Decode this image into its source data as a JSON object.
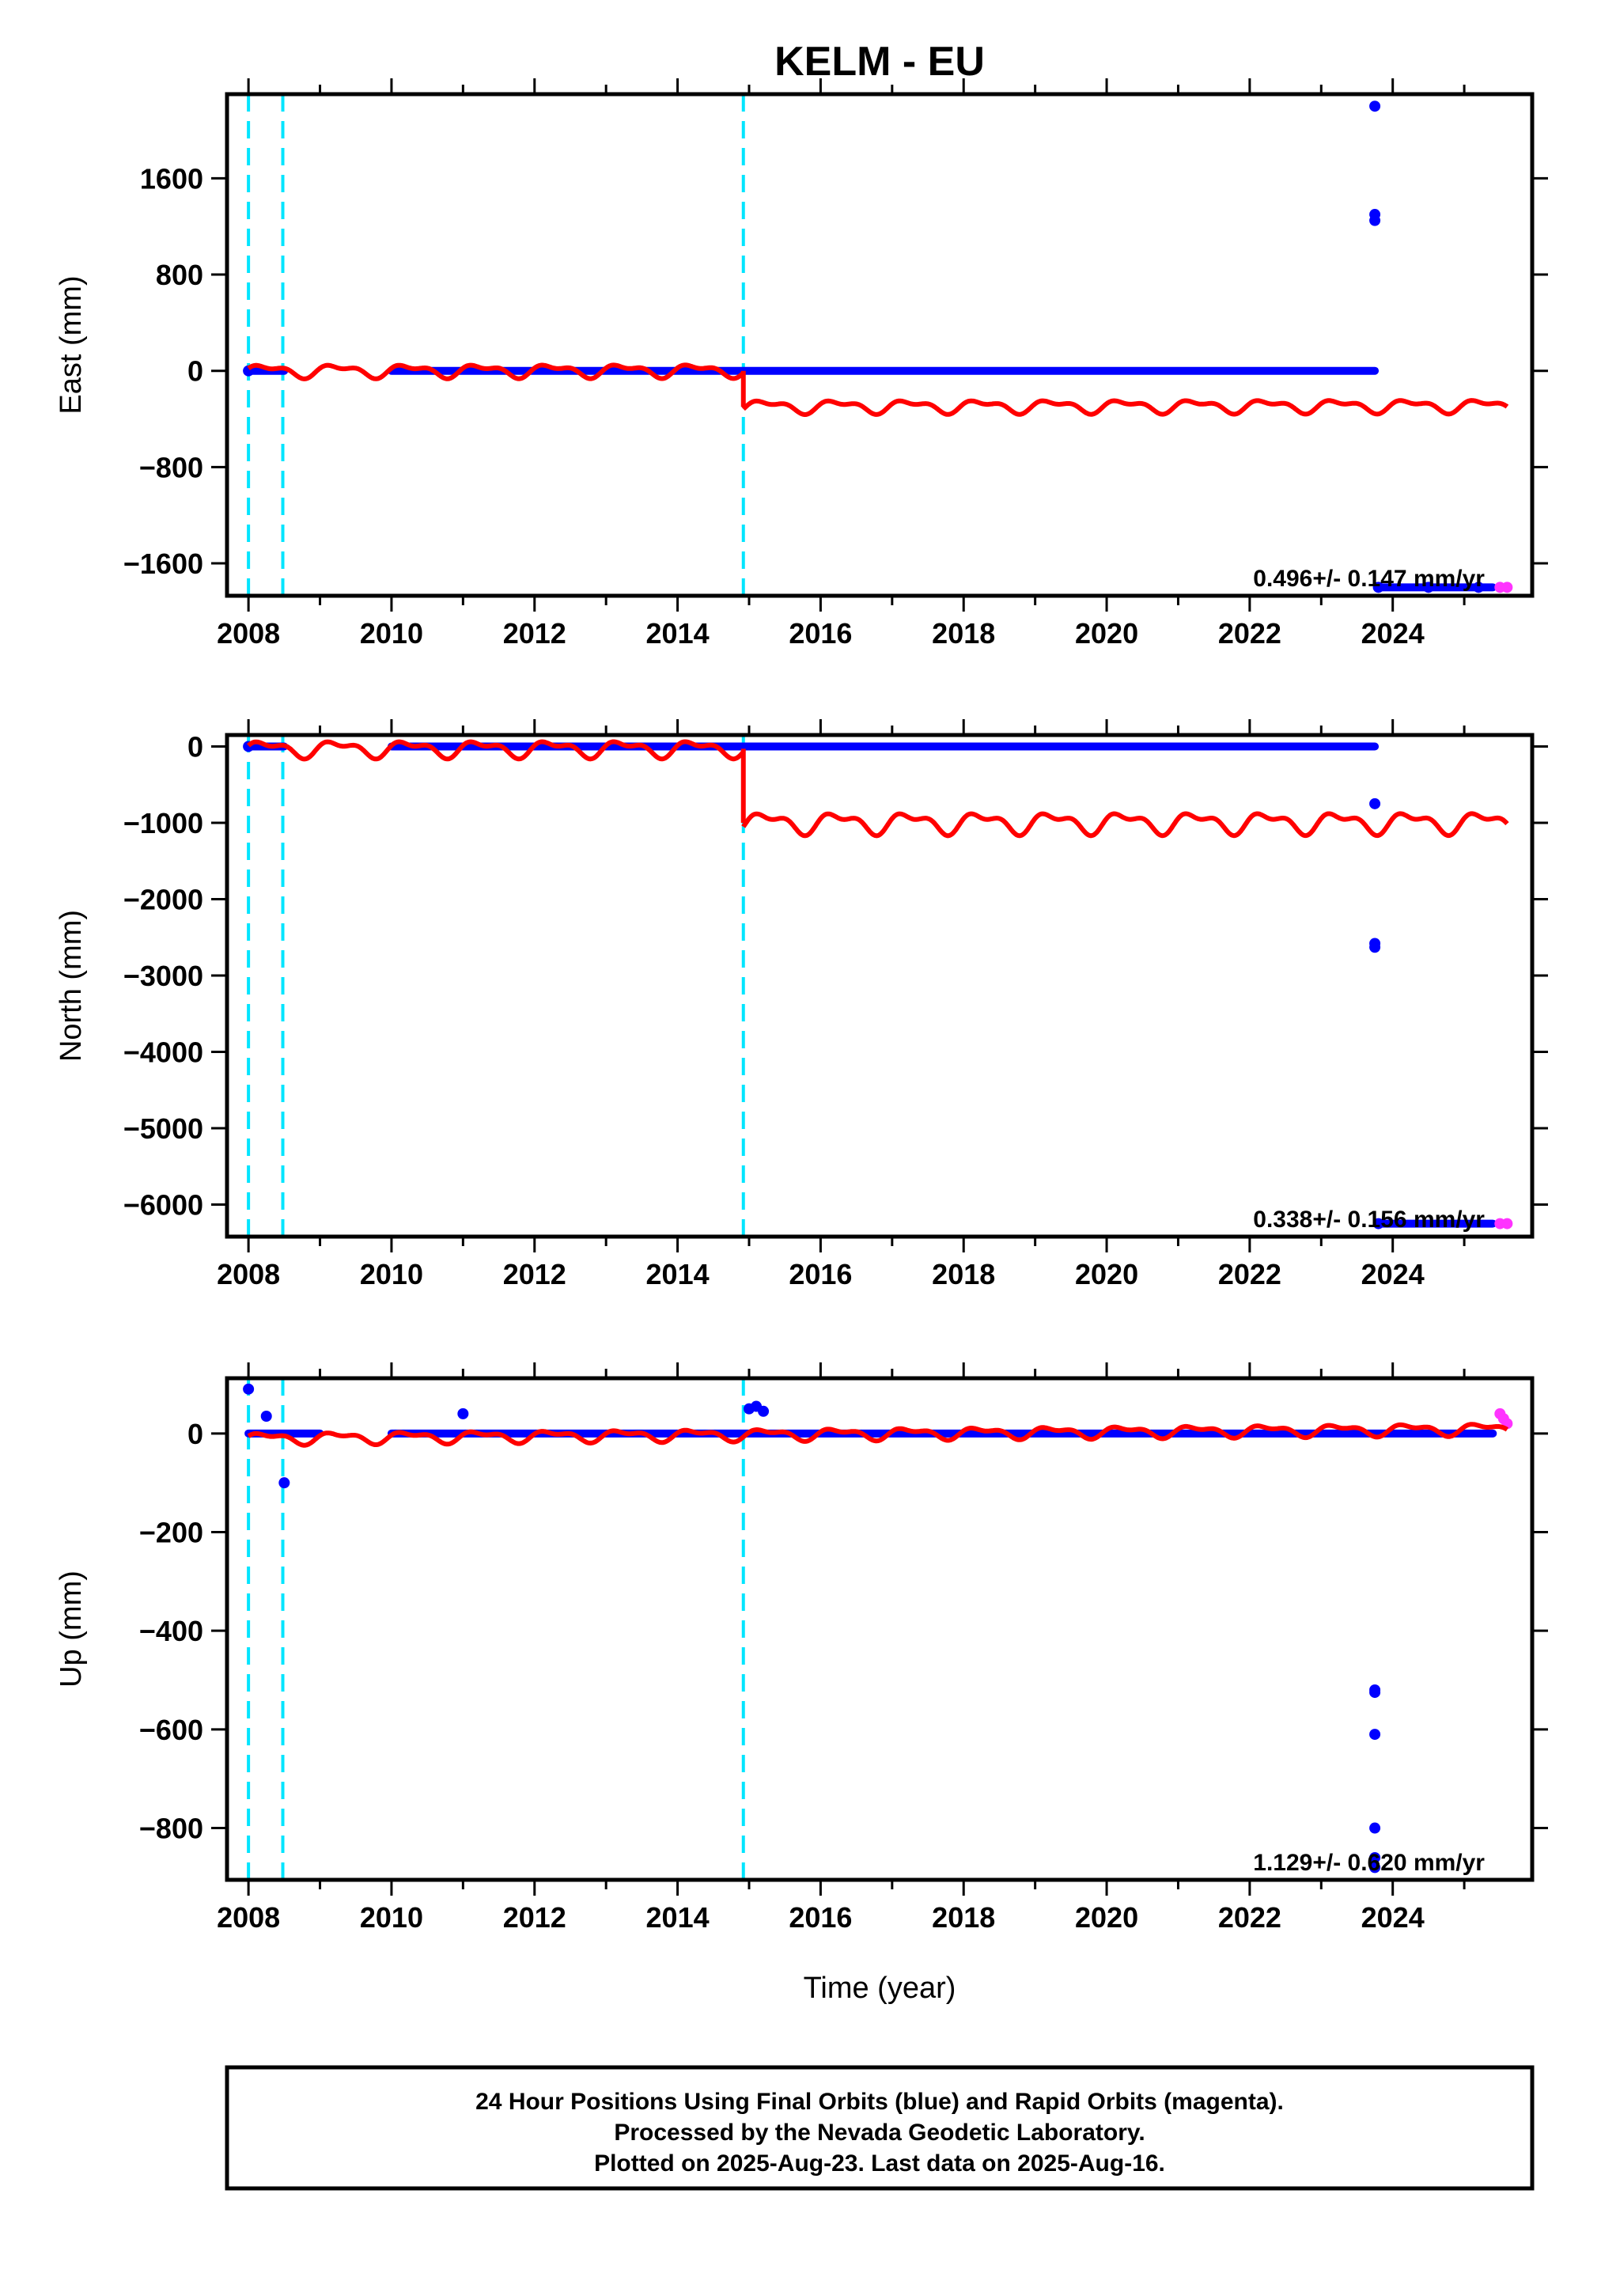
{
  "title": "KELM - EU",
  "xlabel": "Time (year)",
  "footer": [
    "24 Hour Positions Using Final Orbits (blue) and Rapid Orbits (magenta).",
    "Processed by the Nevada Geodetic Laboratory.",
    "Plotted on 2025-Aug-23. Last data on 2025-Aug-16."
  ],
  "colors": {
    "final": "#0000ff",
    "rapid": "#ff33ff",
    "model": "#ff0000",
    "offset": "#00e5ff"
  },
  "chart_data": [
    {
      "type": "scatter",
      "name": "east",
      "ylabel": "East (mm)",
      "rate_text": "0.496+/- 0.147 mm/yr",
      "xlim": [
        2007.7,
        2025.95
      ],
      "ylim": [
        -1870,
        2300
      ],
      "xticks": [
        2008,
        2010,
        2012,
        2014,
        2016,
        2018,
        2020,
        2022,
        2024
      ],
      "yticks": [
        1600,
        800,
        0,
        -800,
        -1600
      ],
      "yticklabels": [
        "1600",
        "800",
        "0",
        "−800",
        "−1600"
      ],
      "offsets": [
        2008.0,
        2008.48,
        2014.92
      ],
      "final_points": [
        [
          2008.0,
          0
        ],
        [
          2023.75,
          2200
        ],
        [
          2023.75,
          1300
        ],
        [
          2023.75,
          1250
        ],
        [
          2023.8,
          -1800
        ],
        [
          2024.5,
          -1800
        ],
        [
          2025.2,
          -1800
        ]
      ],
      "final_segments": [
        {
          "x": [
            2008.0,
            2008.5
          ],
          "y": 0
        },
        {
          "x": [
            2010.0,
            2023.75
          ],
          "y": 0
        },
        {
          "x": [
            2023.8,
            2025.4
          ],
          "y": -1800
        }
      ],
      "rapid_points": [
        [
          2025.5,
          -1800
        ],
        [
          2025.6,
          -1800
        ]
      ],
      "model": {
        "segments": [
          {
            "x": [
              2008.0,
              2014.92
            ],
            "offset": 0,
            "slope": 0.5,
            "amp": 55,
            "bump": 60
          },
          {
            "x": [
              2014.92,
              2025.6
            ],
            "offset": -300,
            "slope": 0.5,
            "amp": 55,
            "bump": 0
          }
        ]
      }
    },
    {
      "type": "scatter",
      "name": "north",
      "ylabel": "North (mm)",
      "rate_text": "0.338+/- 0.156 mm/yr",
      "xlim": [
        2007.7,
        2025.95
      ],
      "ylim": [
        -6420,
        150
      ],
      "xticks": [
        2008,
        2010,
        2012,
        2014,
        2016,
        2018,
        2020,
        2022,
        2024
      ],
      "yticks": [
        0,
        -1000,
        -2000,
        -3000,
        -4000,
        -5000,
        -6000
      ],
      "yticklabels": [
        "0",
        "−1000",
        "−2000",
        "−3000",
        "−4000",
        "−5000",
        "−6000"
      ],
      "offsets": [
        2008.0,
        2008.48,
        2014.92
      ],
      "final_points": [
        [
          2008.0,
          0
        ],
        [
          2023.75,
          -750
        ],
        [
          2023.75,
          -2580
        ],
        [
          2023.75,
          -2630
        ],
        [
          2023.8,
          -6250
        ]
      ],
      "final_segments": [
        {
          "x": [
            2008.0,
            2008.5
          ],
          "y": 0
        },
        {
          "x": [
            2010.0,
            2023.75
          ],
          "y": 0
        },
        {
          "x": [
            2023.8,
            2025.4
          ],
          "y": -6250
        }
      ],
      "rapid_points": [
        [
          2025.5,
          -6250
        ],
        [
          2025.6,
          -6250
        ]
      ],
      "model": {
        "segments": [
          {
            "x": [
              2008.0,
              2014.92
            ],
            "offset": -30,
            "slope": 0.3,
            "amp": 110,
            "bump": 0
          },
          {
            "x": [
              2014.92,
              2025.6
            ],
            "offset": -1000,
            "slope": 0.3,
            "amp": 140,
            "bump": 0
          }
        ]
      }
    },
    {
      "type": "scatter",
      "name": "up",
      "ylabel": "Up (mm)",
      "rate_text": "1.129+/- 0.620 mm/yr",
      "xlim": [
        2007.7,
        2025.95
      ],
      "ylim": [
        -905,
        112
      ],
      "xticks": [
        2008,
        2010,
        2012,
        2014,
        2016,
        2018,
        2020,
        2022,
        2024
      ],
      "yticks": [
        0,
        -200,
        -400,
        -600,
        -800
      ],
      "yticklabels": [
        "0",
        "−200",
        "−400",
        "−600",
        "−800"
      ],
      "offsets": [
        2008.0,
        2008.48,
        2014.92
      ],
      "final_points": [
        [
          2008.0,
          90
        ],
        [
          2008.25,
          35
        ],
        [
          2008.5,
          -100
        ],
        [
          2011.0,
          40
        ],
        [
          2015.0,
          50
        ],
        [
          2015.1,
          55
        ],
        [
          2015.2,
          45
        ],
        [
          2023.75,
          -520
        ],
        [
          2023.75,
          -525
        ],
        [
          2023.75,
          -610
        ],
        [
          2023.75,
          -800
        ],
        [
          2023.75,
          -860
        ],
        [
          2023.75,
          -880
        ]
      ],
      "final_segments": [
        {
          "x": [
            2008.0,
            2009.0
          ],
          "y": 0
        },
        {
          "x": [
            2010.0,
            2025.4
          ],
          "y": 0
        }
      ],
      "rapid_points": [
        [
          2025.5,
          40
        ],
        [
          2025.55,
          30
        ],
        [
          2025.6,
          20
        ]
      ],
      "model": {
        "segments": [
          {
            "x": [
              2008.0,
              2014.92
            ],
            "offset": -10,
            "slope": 1.1,
            "amp": 12,
            "bump": 0
          },
          {
            "x": [
              2014.92,
              2025.6
            ],
            "offset": -10,
            "slope": 1.1,
            "amp": 12,
            "bump": 0
          }
        ]
      }
    }
  ]
}
